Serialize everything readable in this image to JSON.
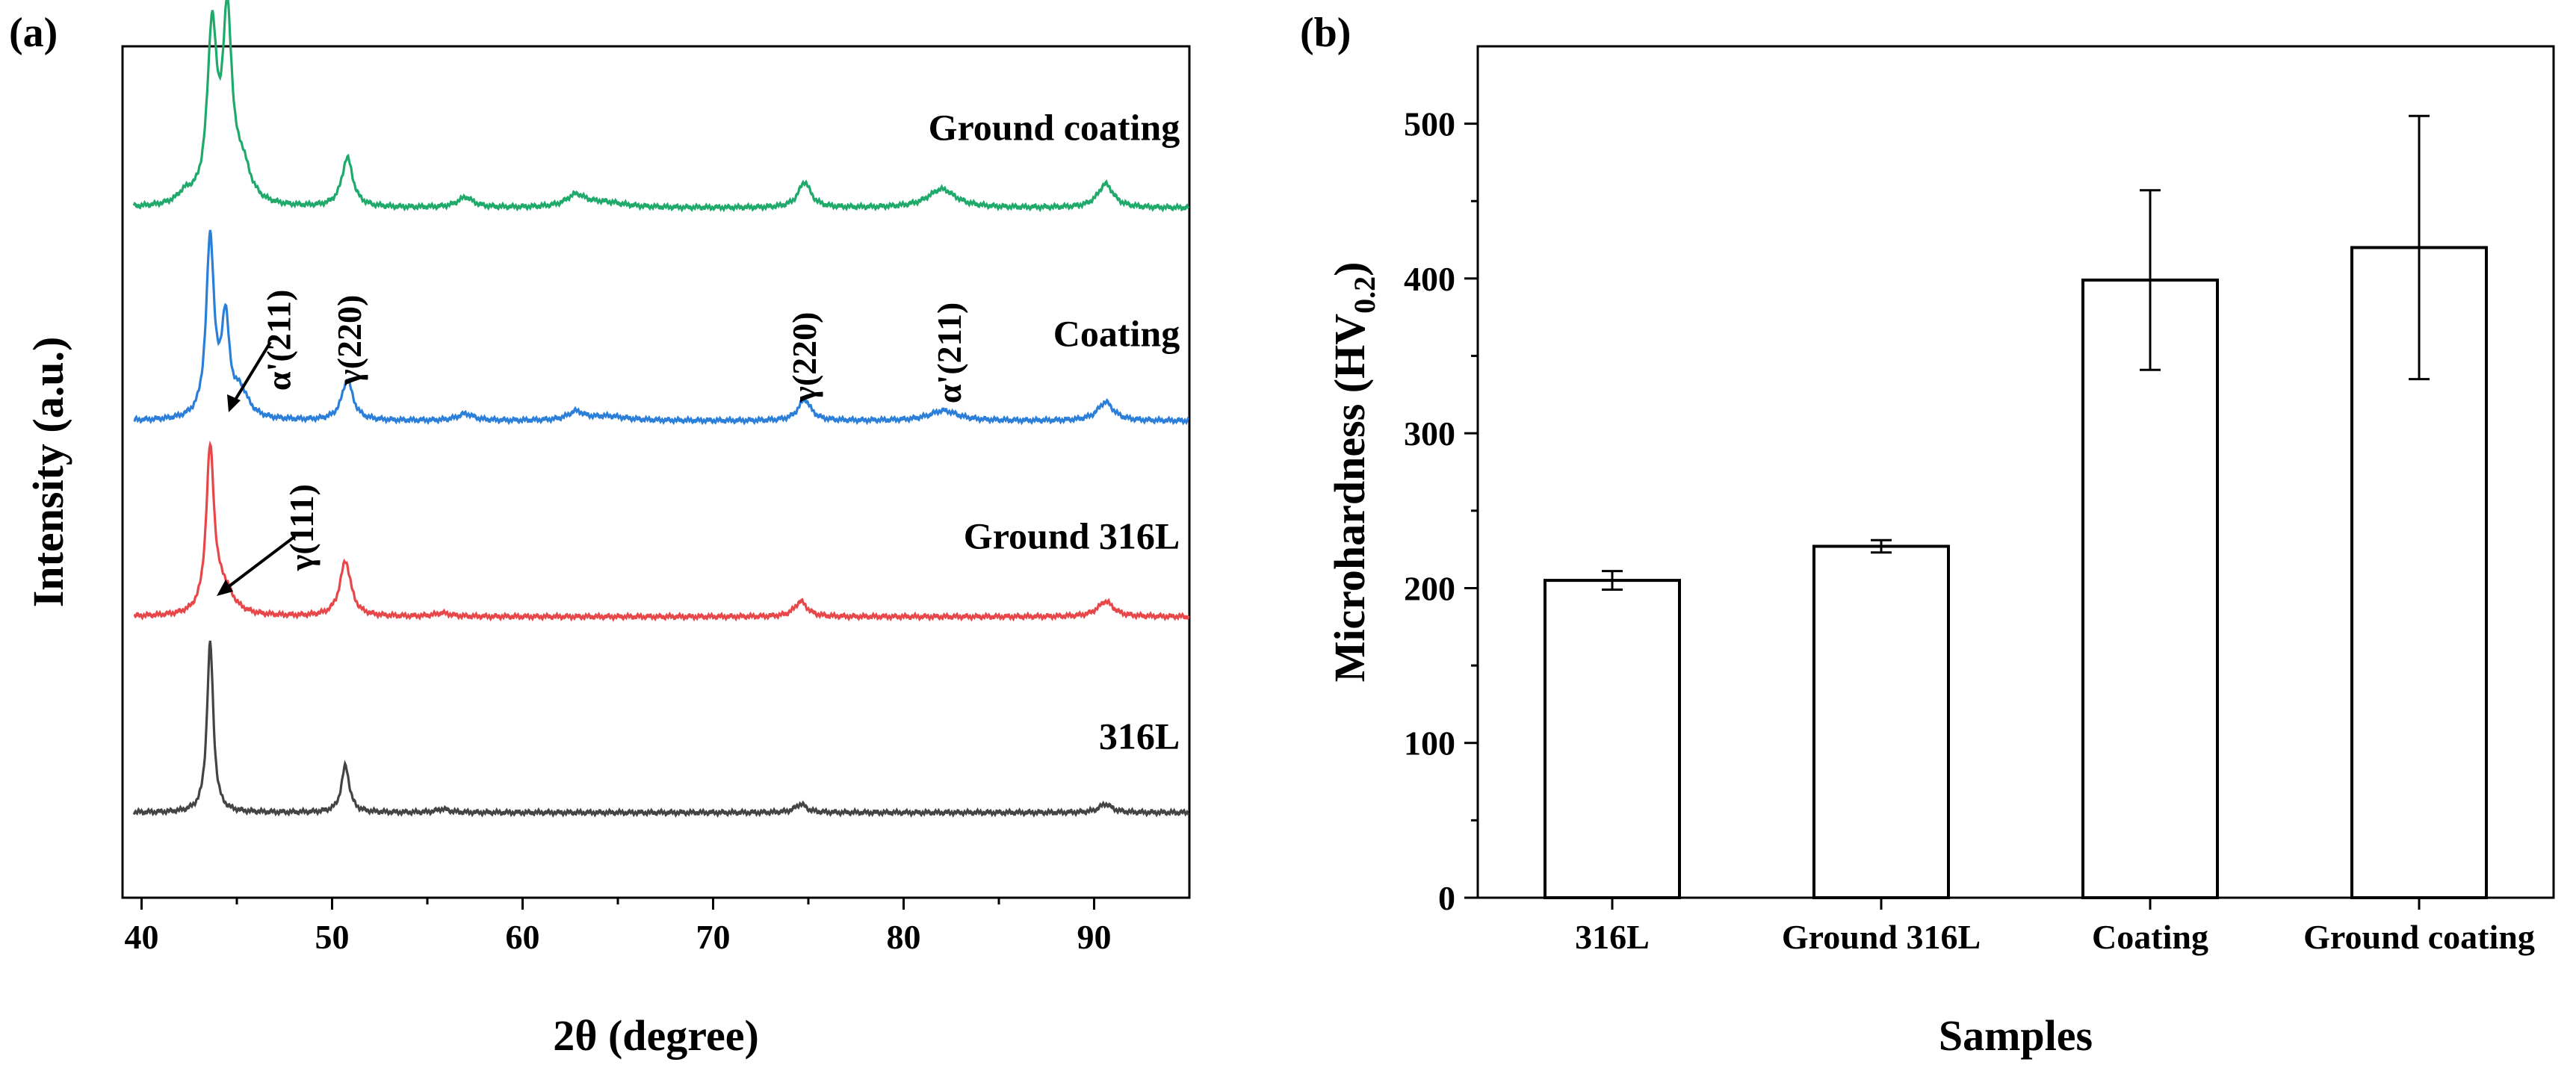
{
  "figure": {
    "panel_a_label": "(a)",
    "panel_b_label": "(b)"
  },
  "chart_data": [
    {
      "type": "line",
      "panel": "(a)",
      "title": "",
      "xlabel": "2θ (degree)",
      "ylabel": "Intensity (a.u.)",
      "xlim": [
        39,
        95
      ],
      "xticks": [
        40,
        50,
        60,
        70,
        80,
        90
      ],
      "ylim": [
        0,
        1
      ],
      "grid": false,
      "series": [
        {
          "name": "316L",
          "color": "#444444",
          "baseline": 0.1,
          "peaks": [
            [
              43.6,
              0.2,
              0.2
            ],
            [
              50.7,
              0.055,
              0.25
            ],
            [
              55.8,
              0.004,
              0.4
            ],
            [
              74.6,
              0.01,
              0.35
            ],
            [
              90.6,
              0.01,
              0.4
            ]
          ]
        },
        {
          "name": "Ground 316L",
          "color": "#e8474a",
          "baseline": 0.33,
          "peaks": [
            [
              43.6,
              0.19,
              0.25
            ],
            [
              44.3,
              0.03,
              0.6
            ],
            [
              50.7,
              0.065,
              0.35
            ],
            [
              55.8,
              0.004,
              0.5
            ],
            [
              74.6,
              0.018,
              0.4
            ],
            [
              90.6,
              0.018,
              0.5
            ]
          ]
        },
        {
          "name": "Coating",
          "color": "#2b7fd9",
          "baseline": 0.56,
          "peaks": [
            [
              43.6,
              0.21,
              0.25
            ],
            [
              44.4,
              0.11,
              0.25
            ],
            [
              45.2,
              0.03,
              0.5
            ],
            [
              50.8,
              0.048,
              0.35
            ],
            [
              57.0,
              0.008,
              0.5
            ],
            [
              62.8,
              0.01,
              0.5
            ],
            [
              64.5,
              0.005,
              1.2
            ],
            [
              74.8,
              0.025,
              0.4
            ],
            [
              82.1,
              0.012,
              0.9
            ],
            [
              90.6,
              0.022,
              0.5
            ]
          ]
        },
        {
          "name": "Ground coating",
          "color": "#1faa6b",
          "baseline": 0.81,
          "peaks": [
            [
              42.3,
              0.012,
              0.5
            ],
            [
              43.7,
              0.2,
              0.3
            ],
            [
              44.5,
              0.21,
              0.3
            ],
            [
              45.3,
              0.04,
              0.5
            ],
            [
              50.8,
              0.058,
              0.35
            ],
            [
              57.0,
              0.012,
              0.5
            ],
            [
              62.8,
              0.014,
              0.6
            ],
            [
              64.3,
              0.006,
              1.3
            ],
            [
              74.8,
              0.03,
              0.4
            ],
            [
              82.0,
              0.022,
              0.9
            ],
            [
              90.6,
              0.028,
              0.5
            ]
          ]
        }
      ],
      "annotations": [
        {
          "text": "α'(211)",
          "x": 47.8,
          "y": 0.655
        },
        {
          "text": "γ(220)",
          "x": 51.5,
          "y": 0.655
        },
        {
          "text": "γ(220)",
          "x": 75.4,
          "y": 0.635
        },
        {
          "text": "α'(211)",
          "x": 83.0,
          "y": 0.64
        },
        {
          "text": "γ(111)",
          "x": 49.0,
          "y": 0.435
        }
      ],
      "series_labels": [
        {
          "text": "Ground  coating",
          "x": 94.5,
          "y": 0.89
        },
        {
          "text": "Coating",
          "x": 94.5,
          "y": 0.648
        },
        {
          "text": "Ground 316L",
          "x": 94.5,
          "y": 0.41
        },
        {
          "text": "316L",
          "x": 94.5,
          "y": 0.175
        }
      ]
    },
    {
      "type": "bar",
      "panel": "(b)",
      "title": "",
      "xlabel": "Samples",
      "ylabel": "Microhardness (HV",
      "ylabel_sub": "0.2",
      "ylabel_close": ")",
      "categories": [
        "316L",
        "Ground 316L",
        "Coating",
        "Ground  coating"
      ],
      "values": [
        205,
        227,
        399,
        420
      ],
      "errors": [
        6,
        4,
        58,
        85
      ],
      "ylim": [
        0,
        550
      ],
      "yticks": [
        "0",
        "100",
        "200",
        "300",
        "400",
        "500"
      ],
      "bar_fill": "#ffffff",
      "bar_stroke": "#000000",
      "grid": false
    }
  ]
}
